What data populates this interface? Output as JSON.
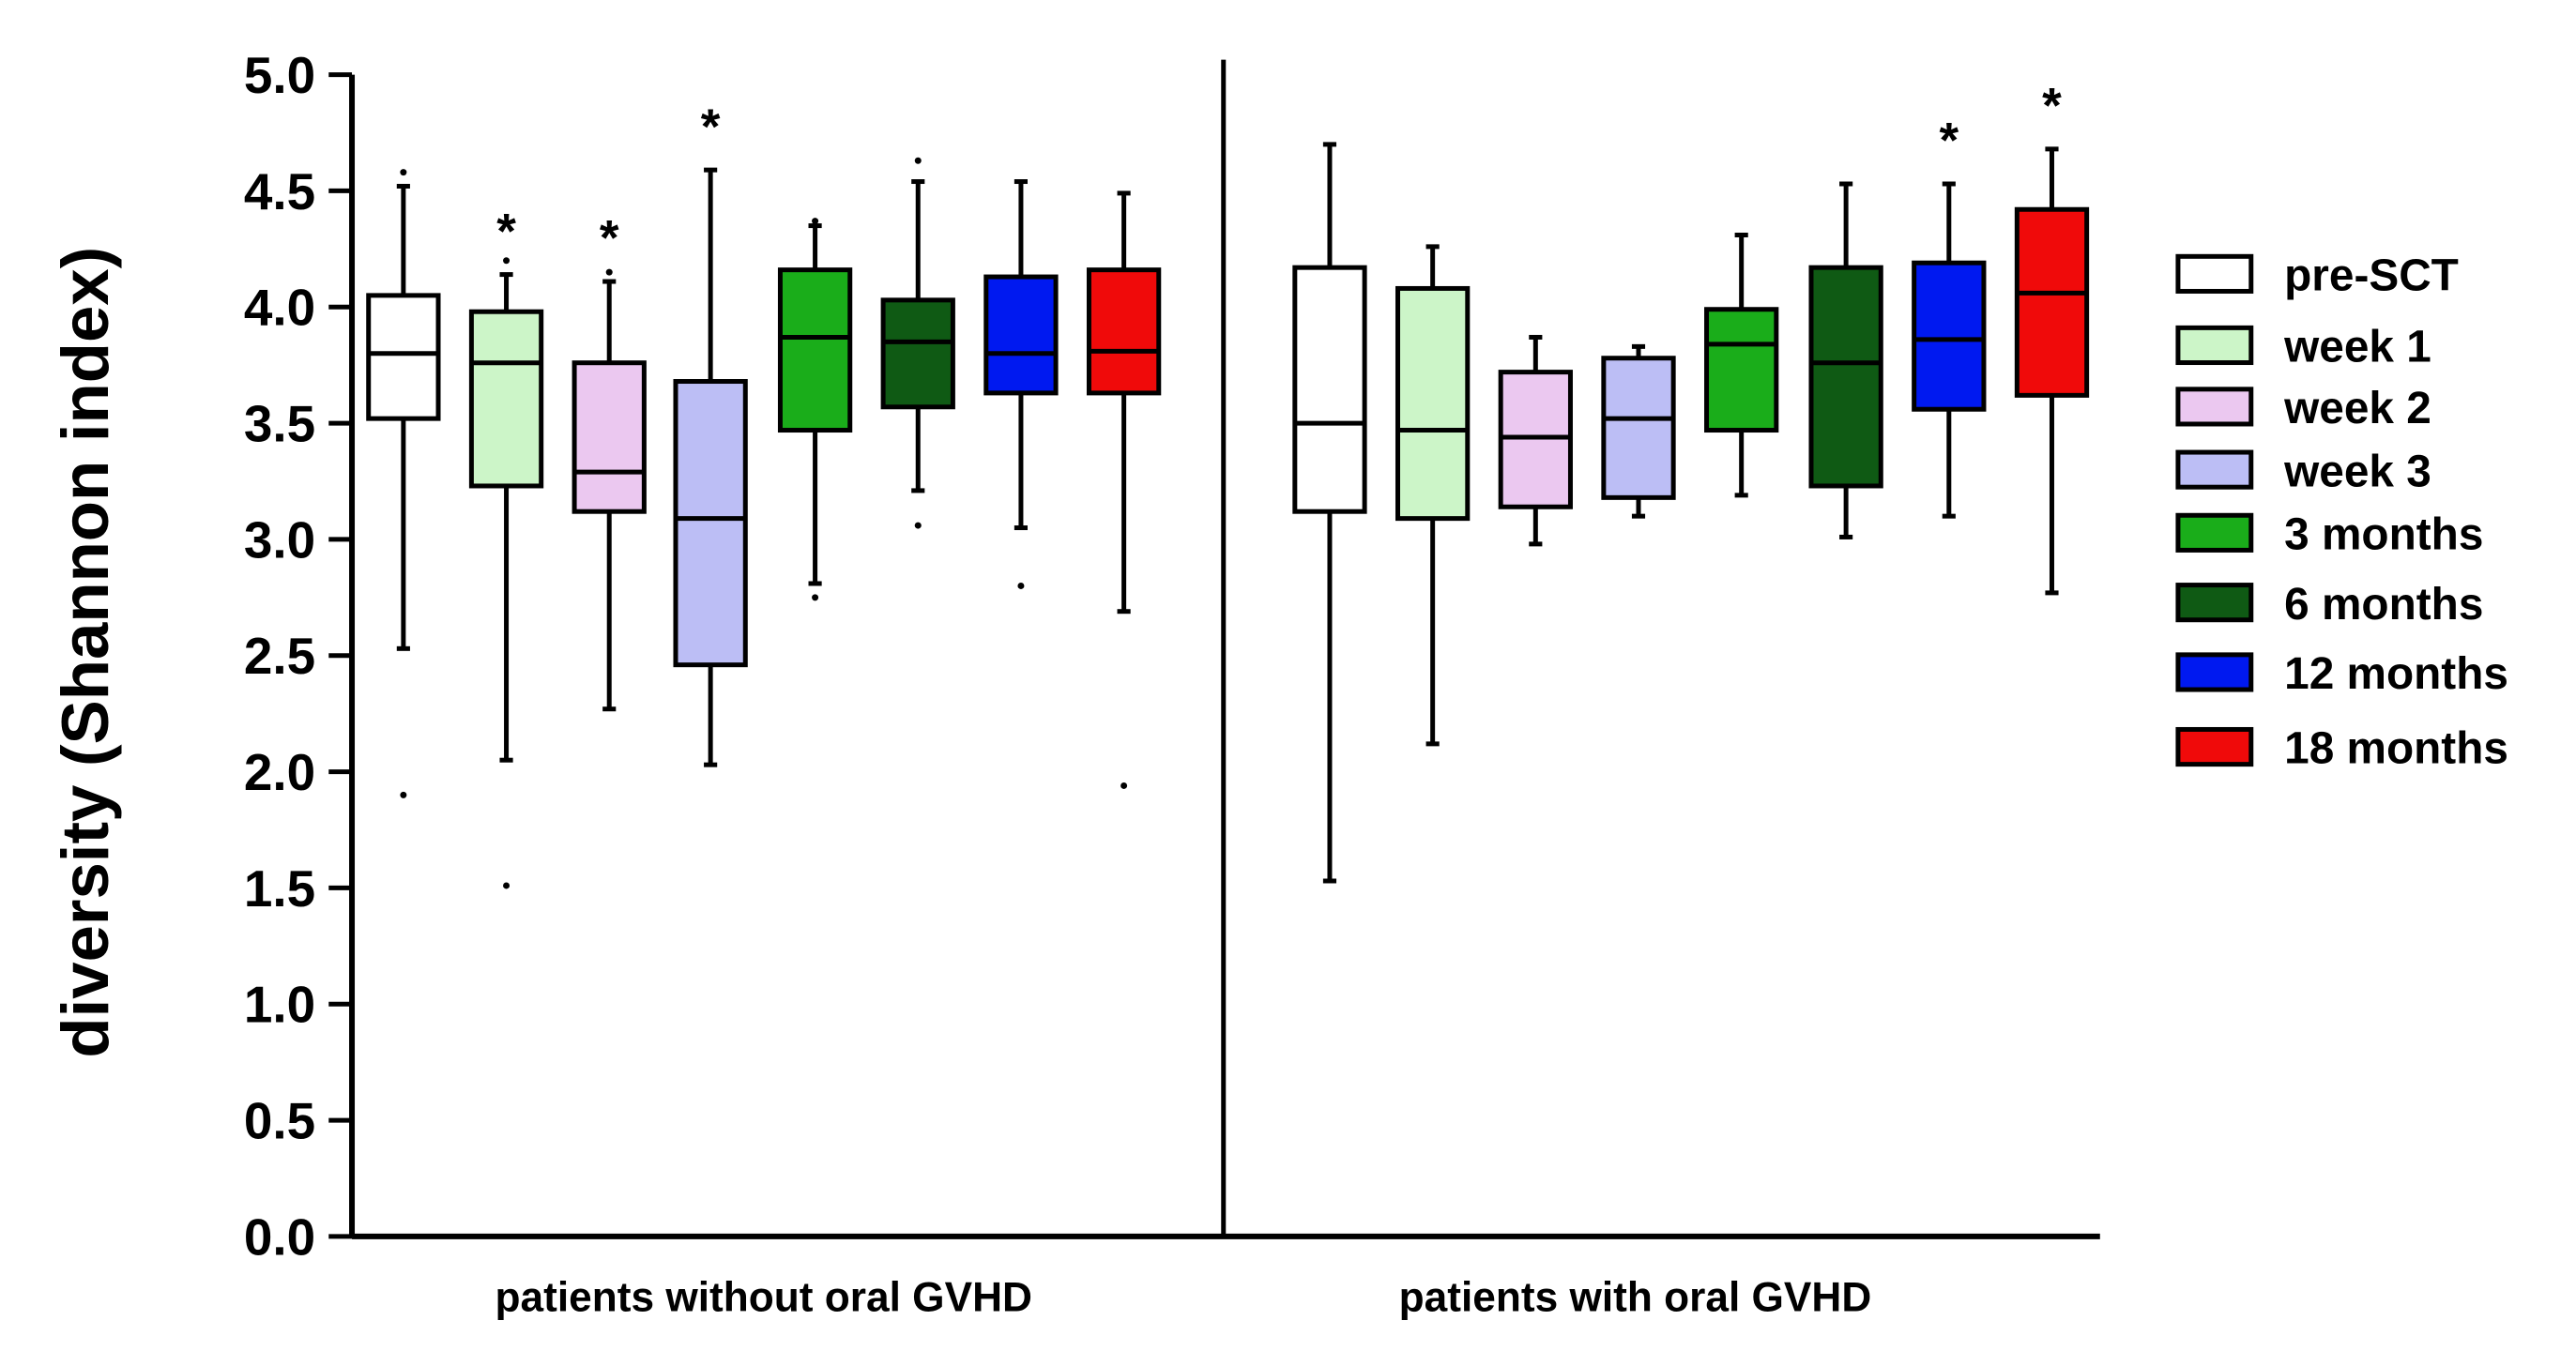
{
  "chart_data": {
    "type": "box",
    "ylabel": "diversity (Shannon index)",
    "xlabel": "",
    "ylim": [
      0,
      5
    ],
    "yticks": [
      "0.0",
      "0.5",
      "1.0",
      "1.5",
      "2.0",
      "2.5",
      "3.0",
      "3.5",
      "4.0",
      "4.5",
      "5.0"
    ],
    "grid": false,
    "legend_position": "right",
    "series": [
      {
        "name": "pre-SCT",
        "color": "#ffffff"
      },
      {
        "name": "week 1",
        "color": "#ccf5c8"
      },
      {
        "name": "week 2",
        "color": "#ebc8f0"
      },
      {
        "name": "week 3",
        "color": "#bcbef5"
      },
      {
        "name": "3 months",
        "color": "#1aad1a"
      },
      {
        "name": "6 months",
        "color": "#0f5a14"
      },
      {
        "name": "12 months",
        "color": "#0019f0"
      },
      {
        "name": "18 months",
        "color": "#f00a0a"
      }
    ],
    "groups": [
      {
        "label": "patients without oral GVHD",
        "boxes": [
          {
            "series": "pre-SCT",
            "min": 2.53,
            "q1": 3.52,
            "median": 3.8,
            "q3": 4.05,
            "max": 4.52,
            "outliers": [
              1.9,
              4.58
            ],
            "star": false
          },
          {
            "series": "week 1",
            "min": 2.05,
            "q1": 3.23,
            "median": 3.76,
            "q3": 3.98,
            "max": 4.14,
            "outliers": [
              1.51,
              4.2
            ],
            "star": true
          },
          {
            "series": "week 2",
            "min": 2.27,
            "q1": 3.12,
            "median": 3.29,
            "q3": 3.76,
            "max": 4.11,
            "outliers": [
              4.15
            ],
            "star": true
          },
          {
            "series": "week 3",
            "min": 2.03,
            "q1": 2.46,
            "median": 3.09,
            "q3": 3.68,
            "max": 4.59,
            "outliers": [],
            "star": true
          },
          {
            "series": "3 months",
            "min": 2.81,
            "q1": 3.47,
            "median": 3.87,
            "q3": 4.16,
            "max": 4.35,
            "outliers": [
              2.75,
              4.37
            ],
            "star": false
          },
          {
            "series": "6 months",
            "min": 3.21,
            "q1": 3.57,
            "median": 3.85,
            "q3": 4.03,
            "max": 4.54,
            "outliers": [
              3.06,
              4.63
            ],
            "star": false
          },
          {
            "series": "12 months",
            "min": 3.05,
            "q1": 3.63,
            "median": 3.8,
            "q3": 4.13,
            "max": 4.54,
            "outliers": [
              2.8
            ],
            "star": false
          },
          {
            "series": "18 months",
            "min": 2.69,
            "q1": 3.63,
            "median": 3.81,
            "q3": 4.16,
            "max": 4.49,
            "outliers": [
              1.94
            ],
            "star": false
          }
        ]
      },
      {
        "label": "patients with oral GVHD",
        "boxes": [
          {
            "series": "pre-SCT",
            "min": 1.53,
            "q1": 3.12,
            "median": 3.5,
            "q3": 4.17,
            "max": 4.7,
            "outliers": [],
            "star": false
          },
          {
            "series": "week 1",
            "min": 2.12,
            "q1": 3.09,
            "median": 3.47,
            "q3": 4.08,
            "max": 4.26,
            "outliers": [],
            "star": false
          },
          {
            "series": "week 2",
            "min": 2.98,
            "q1": 3.14,
            "median": 3.44,
            "q3": 3.72,
            "max": 3.87,
            "outliers": [],
            "star": false
          },
          {
            "series": "week 3",
            "min": 3.1,
            "q1": 3.18,
            "median": 3.52,
            "q3": 3.78,
            "max": 3.83,
            "outliers": [],
            "star": false
          },
          {
            "series": "3 months",
            "min": 3.19,
            "q1": 3.47,
            "median": 3.84,
            "q3": 3.99,
            "max": 4.31,
            "outliers": [],
            "star": false
          },
          {
            "series": "6 months",
            "min": 3.01,
            "q1": 3.23,
            "median": 3.76,
            "q3": 4.17,
            "max": 4.53,
            "outliers": [],
            "star": false
          },
          {
            "series": "12 months",
            "min": 3.1,
            "q1": 3.56,
            "median": 3.86,
            "q3": 4.19,
            "max": 4.53,
            "outliers": [],
            "star": true
          },
          {
            "series": "18 months",
            "min": 2.77,
            "q1": 3.62,
            "median": 4.06,
            "q3": 4.42,
            "max": 4.68,
            "outliers": [],
            "star": true
          }
        ]
      }
    ],
    "significance_marker": "*"
  }
}
